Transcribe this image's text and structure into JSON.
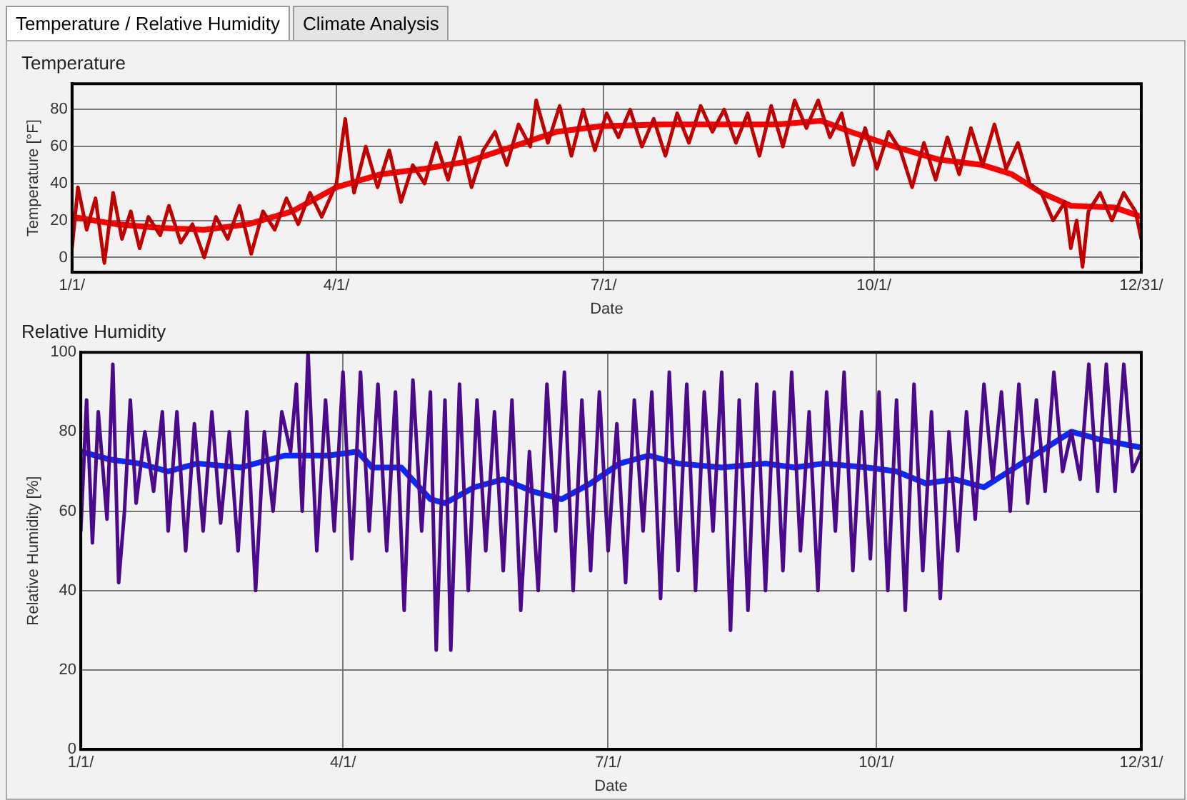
{
  "chart_data": [
    {
      "type": "line",
      "title": "Temperature",
      "xlabel": "Date",
      "ylabel": "Temperature [°F]",
      "annotations": [
        "Temperature / Relative Humidity",
        "Climate Analysis"
      ],
      "xlim": [
        "--01-01",
        "--12-31"
      ],
      "ylim": [
        -8,
        94
      ],
      "xticks": [
        {
          "value": "--01-01",
          "label": "1/1/"
        },
        {
          "value": "--04-01",
          "label": "4/1/"
        },
        {
          "value": "--07-01",
          "label": "7/1/"
        },
        {
          "value": "--10-01",
          "label": "10/1/"
        },
        {
          "value": "--12-31",
          "label": "12/31/"
        }
      ],
      "yticks": [
        0,
        20,
        40,
        60,
        80
      ],
      "grid": true,
      "legend": false,
      "marker": "none",
      "line_style": "solid",
      "series": [
        {
          "color": "#c00000",
          "x": [
            "--01-01",
            "--01-03",
            "--01-06",
            "--01-09",
            "--01-12",
            "--01-15",
            "--01-18",
            "--01-21",
            "--01-24",
            "--01-27",
            "--01-31",
            "--02-03",
            "--02-07",
            "--02-11",
            "--02-15",
            "--02-19",
            "--02-23",
            "--02-27",
            "--03-03",
            "--03-07",
            "--03-11",
            "--03-15",
            "--03-19",
            "--03-23",
            "--03-27",
            "--04-01",
            "--04-04",
            "--04-07",
            "--04-11",
            "--04-15",
            "--04-19",
            "--04-23",
            "--04-27",
            "--05-01",
            "--05-05",
            "--05-09",
            "--05-13",
            "--05-17",
            "--05-21",
            "--05-25",
            "--05-29",
            "--06-02",
            "--06-06",
            "--06-08",
            "--06-12",
            "--06-16",
            "--06-20",
            "--06-24",
            "--06-28",
            "--07-02",
            "--07-06",
            "--07-10",
            "--07-14",
            "--07-18",
            "--07-22",
            "--07-26",
            "--07-30",
            "--08-03",
            "--08-07",
            "--08-11",
            "--08-15",
            "--08-19",
            "--08-23",
            "--08-27",
            "--08-31",
            "--09-04",
            "--09-08",
            "--09-12",
            "--09-16",
            "--09-20",
            "--09-24",
            "--09-28",
            "--10-02",
            "--10-06",
            "--10-10",
            "--10-14",
            "--10-18",
            "--10-22",
            "--10-26",
            "--10-30",
            "--11-03",
            "--11-07",
            "--11-11",
            "--11-15",
            "--11-19",
            "--11-23",
            "--11-27",
            "--12-01",
            "--12-05",
            "--12-07",
            "--12-09",
            "--12-11",
            "--12-13",
            "--12-17",
            "--12-21",
            "--12-25",
            "--12-29",
            "--12-31"
          ],
          "values": [
            5,
            38,
            15,
            32,
            -3,
            35,
            10,
            25,
            5,
            22,
            12,
            28,
            8,
            18,
            0,
            22,
            10,
            28,
            2,
            25,
            15,
            32,
            18,
            35,
            22,
            40,
            75,
            35,
            60,
            38,
            58,
            30,
            50,
            40,
            62,
            42,
            65,
            38,
            58,
            68,
            50,
            72,
            60,
            85,
            62,
            82,
            55,
            80,
            58,
            78,
            65,
            80,
            60,
            75,
            55,
            78,
            62,
            82,
            68,
            80,
            62,
            78,
            55,
            82,
            60,
            85,
            70,
            85,
            65,
            78,
            50,
            70,
            48,
            68,
            58,
            38,
            62,
            42,
            65,
            45,
            70,
            50,
            72,
            48,
            62,
            40,
            35,
            20,
            30,
            5,
            20,
            -5,
            25,
            35,
            20,
            35,
            25,
            10
          ]
        },
        {
          "color": "#ff0000",
          "x": [
            "--01-01",
            "--01-16",
            "--01-31",
            "--02-15",
            "--03-02",
            "--03-17",
            "--04-01",
            "--04-16",
            "--05-01",
            "--05-16",
            "--05-31",
            "--06-15",
            "--06-30",
            "--07-20",
            "--08-09",
            "--08-29",
            "--09-13",
            "--09-23",
            "--10-08",
            "--10-23",
            "--11-07",
            "--11-17",
            "--11-27",
            "--12-07",
            "--12-22",
            "--12-31"
          ],
          "values": [
            22,
            18,
            16,
            15,
            18,
            25,
            38,
            45,
            48,
            52,
            60,
            68,
            71,
            72,
            72,
            72,
            74,
            68,
            60,
            53,
            50,
            45,
            35,
            28,
            27,
            22
          ]
        }
      ]
    },
    {
      "type": "line",
      "title": "Relative Humidity",
      "xlabel": "Date",
      "ylabel": "Relative Humidity [%]",
      "xlim": [
        "--01-01",
        "--12-31"
      ],
      "ylim": [
        0,
        100
      ],
      "xticks": [
        {
          "value": "--01-01",
          "label": "1/1/"
        },
        {
          "value": "--04-01",
          "label": "4/1/"
        },
        {
          "value": "--07-01",
          "label": "7/1/"
        },
        {
          "value": "--10-01",
          "label": "10/1/"
        },
        {
          "value": "--12-31",
          "label": "12/31/"
        }
      ],
      "yticks": [
        0,
        20,
        40,
        60,
        80,
        100
      ],
      "grid": true,
      "legend": false,
      "marker": "none",
      "line_style": "solid",
      "series": [
        {
          "color": "#4b0a8c",
          "x": [
            "--01-01",
            "--01-03",
            "--01-05",
            "--01-07",
            "--01-10",
            "--01-12",
            "--01-14",
            "--01-16",
            "--01-18",
            "--01-20",
            "--01-23",
            "--01-26",
            "--01-29",
            "--01-31",
            "--02-03",
            "--02-06",
            "--02-09",
            "--02-12",
            "--02-15",
            "--02-18",
            "--02-21",
            "--02-24",
            "--02-27",
            "--03-02",
            "--03-05",
            "--03-08",
            "--03-11",
            "--03-14",
            "--03-16",
            "--03-18",
            "--03-20",
            "--03-23",
            "--03-26",
            "--03-29",
            "--04-01",
            "--04-04",
            "--04-07",
            "--04-10",
            "--04-13",
            "--04-16",
            "--04-19",
            "--04-22",
            "--04-25",
            "--04-28",
            "--05-01",
            "--05-03",
            "--05-06",
            "--05-08",
            "--05-11",
            "--05-14",
            "--05-17",
            "--05-20",
            "--05-23",
            "--05-26",
            "--05-29",
            "--06-01",
            "--06-04",
            "--06-07",
            "--06-10",
            "--06-13",
            "--06-16",
            "--06-19",
            "--06-22",
            "--06-25",
            "--06-28",
            "--07-01",
            "--07-04",
            "--07-07",
            "--07-10",
            "--07-13",
            "--07-16",
            "--07-19",
            "--07-22",
            "--07-25",
            "--07-28",
            "--07-31",
            "--08-03",
            "--08-06",
            "--08-09",
            "--08-12",
            "--08-15",
            "--08-18",
            "--08-21",
            "--08-24",
            "--08-27",
            "--08-30",
            "--09-02",
            "--09-05",
            "--09-08",
            "--09-11",
            "--09-14",
            "--09-17",
            "--09-20",
            "--09-23",
            "--09-26",
            "--09-29",
            "--10-02",
            "--10-05",
            "--10-08",
            "--10-11",
            "--10-14",
            "--10-17",
            "--10-20",
            "--10-23",
            "--10-26",
            "--10-29",
            "--11-01",
            "--11-04",
            "--11-07",
            "--11-10",
            "--11-13",
            "--11-16",
            "--11-19",
            "--11-22",
            "--11-25",
            "--11-28",
            "--12-01",
            "--12-04",
            "--12-07",
            "--12-10",
            "--12-13",
            "--12-16",
            "--12-19",
            "--12-22",
            "--12-25",
            "--12-28",
            "--12-31"
          ],
          "values": [
            55,
            88,
            52,
            85,
            58,
            97,
            42,
            60,
            88,
            62,
            80,
            65,
            85,
            55,
            85,
            50,
            82,
            55,
            85,
            57,
            80,
            50,
            85,
            40,
            80,
            60,
            85,
            75,
            92,
            60,
            100,
            50,
            88,
            55,
            95,
            48,
            95,
            55,
            92,
            50,
            90,
            35,
            93,
            55,
            90,
            25,
            88,
            25,
            92,
            40,
            88,
            50,
            85,
            45,
            88,
            35,
            75,
            40,
            92,
            55,
            95,
            40,
            88,
            45,
            90,
            50,
            82,
            42,
            88,
            55,
            90,
            38,
            95,
            45,
            92,
            40,
            90,
            55,
            95,
            30,
            88,
            35,
            92,
            40,
            90,
            45,
            95,
            50,
            85,
            40,
            90,
            55,
            95,
            45,
            85,
            48,
            90,
            40,
            88,
            35,
            92,
            45,
            85,
            38,
            80,
            50,
            85,
            58,
            92,
            68,
            90,
            60,
            92,
            62,
            88,
            65,
            95,
            70,
            80,
            68,
            97,
            65,
            97,
            65,
            97,
            70,
            75
          ]
        },
        {
          "color": "#0a28ff",
          "x": [
            "--01-01",
            "--01-11",
            "--01-21",
            "--01-31",
            "--02-10",
            "--02-25",
            "--03-12",
            "--03-27",
            "--04-06",
            "--04-11",
            "--04-21",
            "--05-01",
            "--05-06",
            "--05-16",
            "--05-26",
            "--06-05",
            "--06-15",
            "--06-25",
            "--07-05",
            "--07-15",
            "--07-25",
            "--08-09",
            "--08-24",
            "--09-03",
            "--09-13",
            "--09-28",
            "--10-08",
            "--10-18",
            "--10-28",
            "--11-07",
            "--11-22",
            "--12-07",
            "--12-17",
            "--12-31"
          ],
          "values": [
            75,
            73,
            72,
            70,
            72,
            71,
            74,
            74,
            75,
            71,
            71,
            63,
            62,
            66,
            68,
            65,
            63,
            67,
            72,
            74,
            72,
            71,
            72,
            71,
            72,
            71,
            70,
            67,
            68,
            66,
            73,
            80,
            78,
            76
          ]
        }
      ]
    }
  ]
}
